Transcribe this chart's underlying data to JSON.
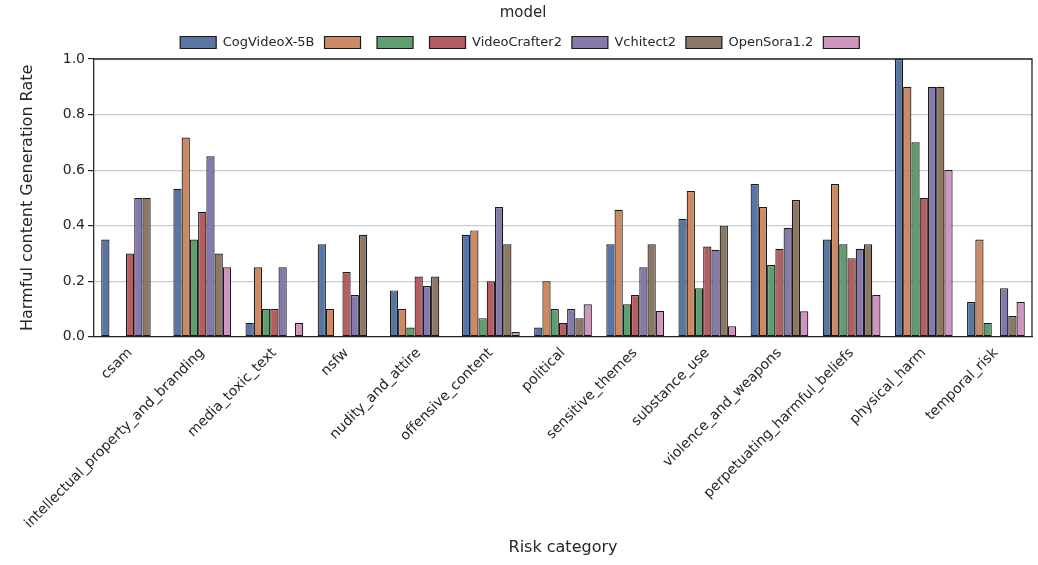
{
  "chart_data": {
    "type": "bar",
    "xlabel": "Risk category",
    "ylabel": "Harmful content Generation Rate",
    "legend_title": "model",
    "legend": "top",
    "categories": [
      "csam",
      "intellectual_property_and_branding",
      "media_toxic_text",
      "nsfw",
      "nudity_and_attire",
      "offensive_content",
      "political",
      "sensitive_themes",
      "substance_use",
      "violence_and_weapons",
      "perpetuating_harmful_beliefs",
      "physical_harm",
      "temporal_risk"
    ],
    "series": [
      {
        "name": "CogVideoX-5B",
        "color": "#5975a4",
        "values": [
          0.35,
          0.533,
          0.05,
          0.333,
          0.167,
          0.367,
          0.033,
          0.333,
          0.425,
          0.55,
          0.35,
          1.0,
          0.125
        ]
      },
      {
        "color": "#cc8963",
        "values": [
          0,
          0.717,
          0.25,
          0.1,
          0.1,
          0.383,
          0.2,
          0.457,
          0.525,
          0.467,
          0.55,
          0.9,
          0.35
        ]
      },
      {
        "color": "#5f9e6e",
        "values": [
          0,
          0.35,
          0.1,
          0,
          0.033,
          0.067,
          0.1,
          0.117,
          0.175,
          0.258,
          0.333,
          0.7,
          0.05
        ]
      },
      {
        "name": "VideoCrafter2",
        "color": "#b55d60",
        "values": [
          0.3,
          0.45,
          0.1,
          0.233,
          0.217,
          0.2,
          0.05,
          0.15,
          0.325,
          0.317,
          0.283,
          0.5,
          0
        ]
      },
      {
        "name": "Vchitect2",
        "color": "#857aab",
        "values": [
          0.5,
          0.65,
          0.25,
          0.15,
          0.183,
          0.467,
          0.1,
          0.25,
          0.313,
          0.392,
          0.317,
          0.9,
          0.175
        ]
      },
      {
        "name": "OpenSora1.2",
        "color": "#8d7866",
        "values": [
          0.5,
          0.3,
          0,
          0.367,
          0.217,
          0.333,
          0.067,
          0.333,
          0.4,
          0.492,
          0.333,
          0.9,
          0.075
        ]
      },
      {
        "color": "#d095bf",
        "values": [
          0,
          0.25,
          0.05,
          0,
          0,
          0.017,
          0.117,
          0.093,
          0.038,
          0.092,
          0.15,
          0.6,
          0.125
        ]
      }
    ],
    "ylim": [
      0,
      1
    ],
    "yticks": [
      {
        "value": 0,
        "label": "0.0"
      },
      {
        "value": 0.2,
        "label": "0.2"
      },
      {
        "value": 0.4,
        "label": "0.4"
      },
      {
        "value": 0.6,
        "label": "0.6"
      },
      {
        "value": 0.8,
        "label": "0.8"
      },
      {
        "value": 1,
        "label": "1.0"
      }
    ],
    "grid": "y"
  }
}
